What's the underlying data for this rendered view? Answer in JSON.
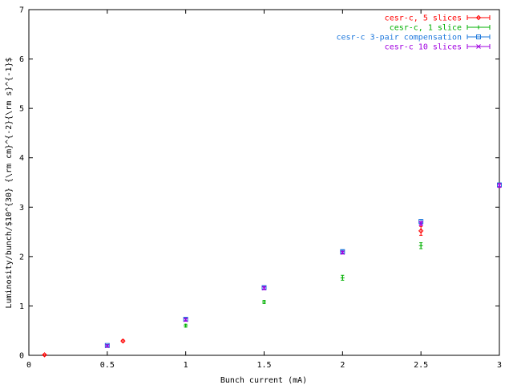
{
  "chart_data": {
    "type": "scatter",
    "title": "",
    "xlabel": "Bunch current (mA)",
    "ylabel": "Luminosity/bunch/$10^{30} {\\rm cm}^{-2}{\\rm s}^{-1}$",
    "xlim": [
      0,
      3
    ],
    "ylim": [
      0,
      7
    ],
    "xticks": [
      0,
      0.5,
      1,
      1.5,
      2,
      2.5,
      3
    ],
    "xtick_labels": [
      "0",
      "0.5",
      "1",
      "1.5",
      "2",
      "2.5",
      "3"
    ],
    "yticks": [
      0,
      1,
      2,
      3,
      4,
      5,
      6,
      7
    ],
    "ytick_labels": [
      "0",
      "1",
      "2",
      "3",
      "4",
      "5",
      "6",
      "7"
    ],
    "error_bars": true,
    "grid": false,
    "legend_position": "top-right",
    "series": [
      {
        "name": "cesr-c, 5 slices",
        "color": "#ff0000",
        "marker": "diamond",
        "points": [
          {
            "x": 0.1,
            "y": 0.01,
            "err": 0.005
          },
          {
            "x": 0.6,
            "y": 0.29,
            "err": 0.02
          },
          {
            "x": 2.5,
            "y": 2.52,
            "err": 0.09
          }
        ]
      },
      {
        "name": "cesr-c, 1 slice",
        "color": "#00b000",
        "marker": "plus",
        "points": [
          {
            "x": 1.0,
            "y": 0.6,
            "err": 0.03
          },
          {
            "x": 1.5,
            "y": 1.08,
            "err": 0.03
          },
          {
            "x": 2.0,
            "y": 1.57,
            "err": 0.05
          },
          {
            "x": 2.5,
            "y": 2.22,
            "err": 0.06
          }
        ]
      },
      {
        "name": "cesr-c 3-pair compensation",
        "color": "#1e78dc",
        "marker": "square",
        "points": [
          {
            "x": 0.5,
            "y": 0.2,
            "err": 0.02
          },
          {
            "x": 1.0,
            "y": 0.73,
            "err": 0.03
          },
          {
            "x": 1.5,
            "y": 1.37,
            "err": 0.03
          },
          {
            "x": 2.0,
            "y": 2.1,
            "err": 0.03
          },
          {
            "x": 2.5,
            "y": 2.71,
            "err": 0.04
          },
          {
            "x": 3.0,
            "y": 3.45,
            "err": 0.04
          }
        ]
      },
      {
        "name": "cesr-c 10 slices",
        "color": "#a000e0",
        "marker": "cross",
        "points": [
          {
            "x": 0.5,
            "y": 0.19,
            "err": 0.02
          },
          {
            "x": 1.0,
            "y": 0.72,
            "err": 0.03
          },
          {
            "x": 1.5,
            "y": 1.36,
            "err": 0.03
          },
          {
            "x": 2.0,
            "y": 2.08,
            "err": 0.03
          },
          {
            "x": 2.5,
            "y": 2.67,
            "err": 0.04
          },
          {
            "x": 3.0,
            "y": 3.44,
            "err": 0.04
          }
        ]
      }
    ]
  }
}
